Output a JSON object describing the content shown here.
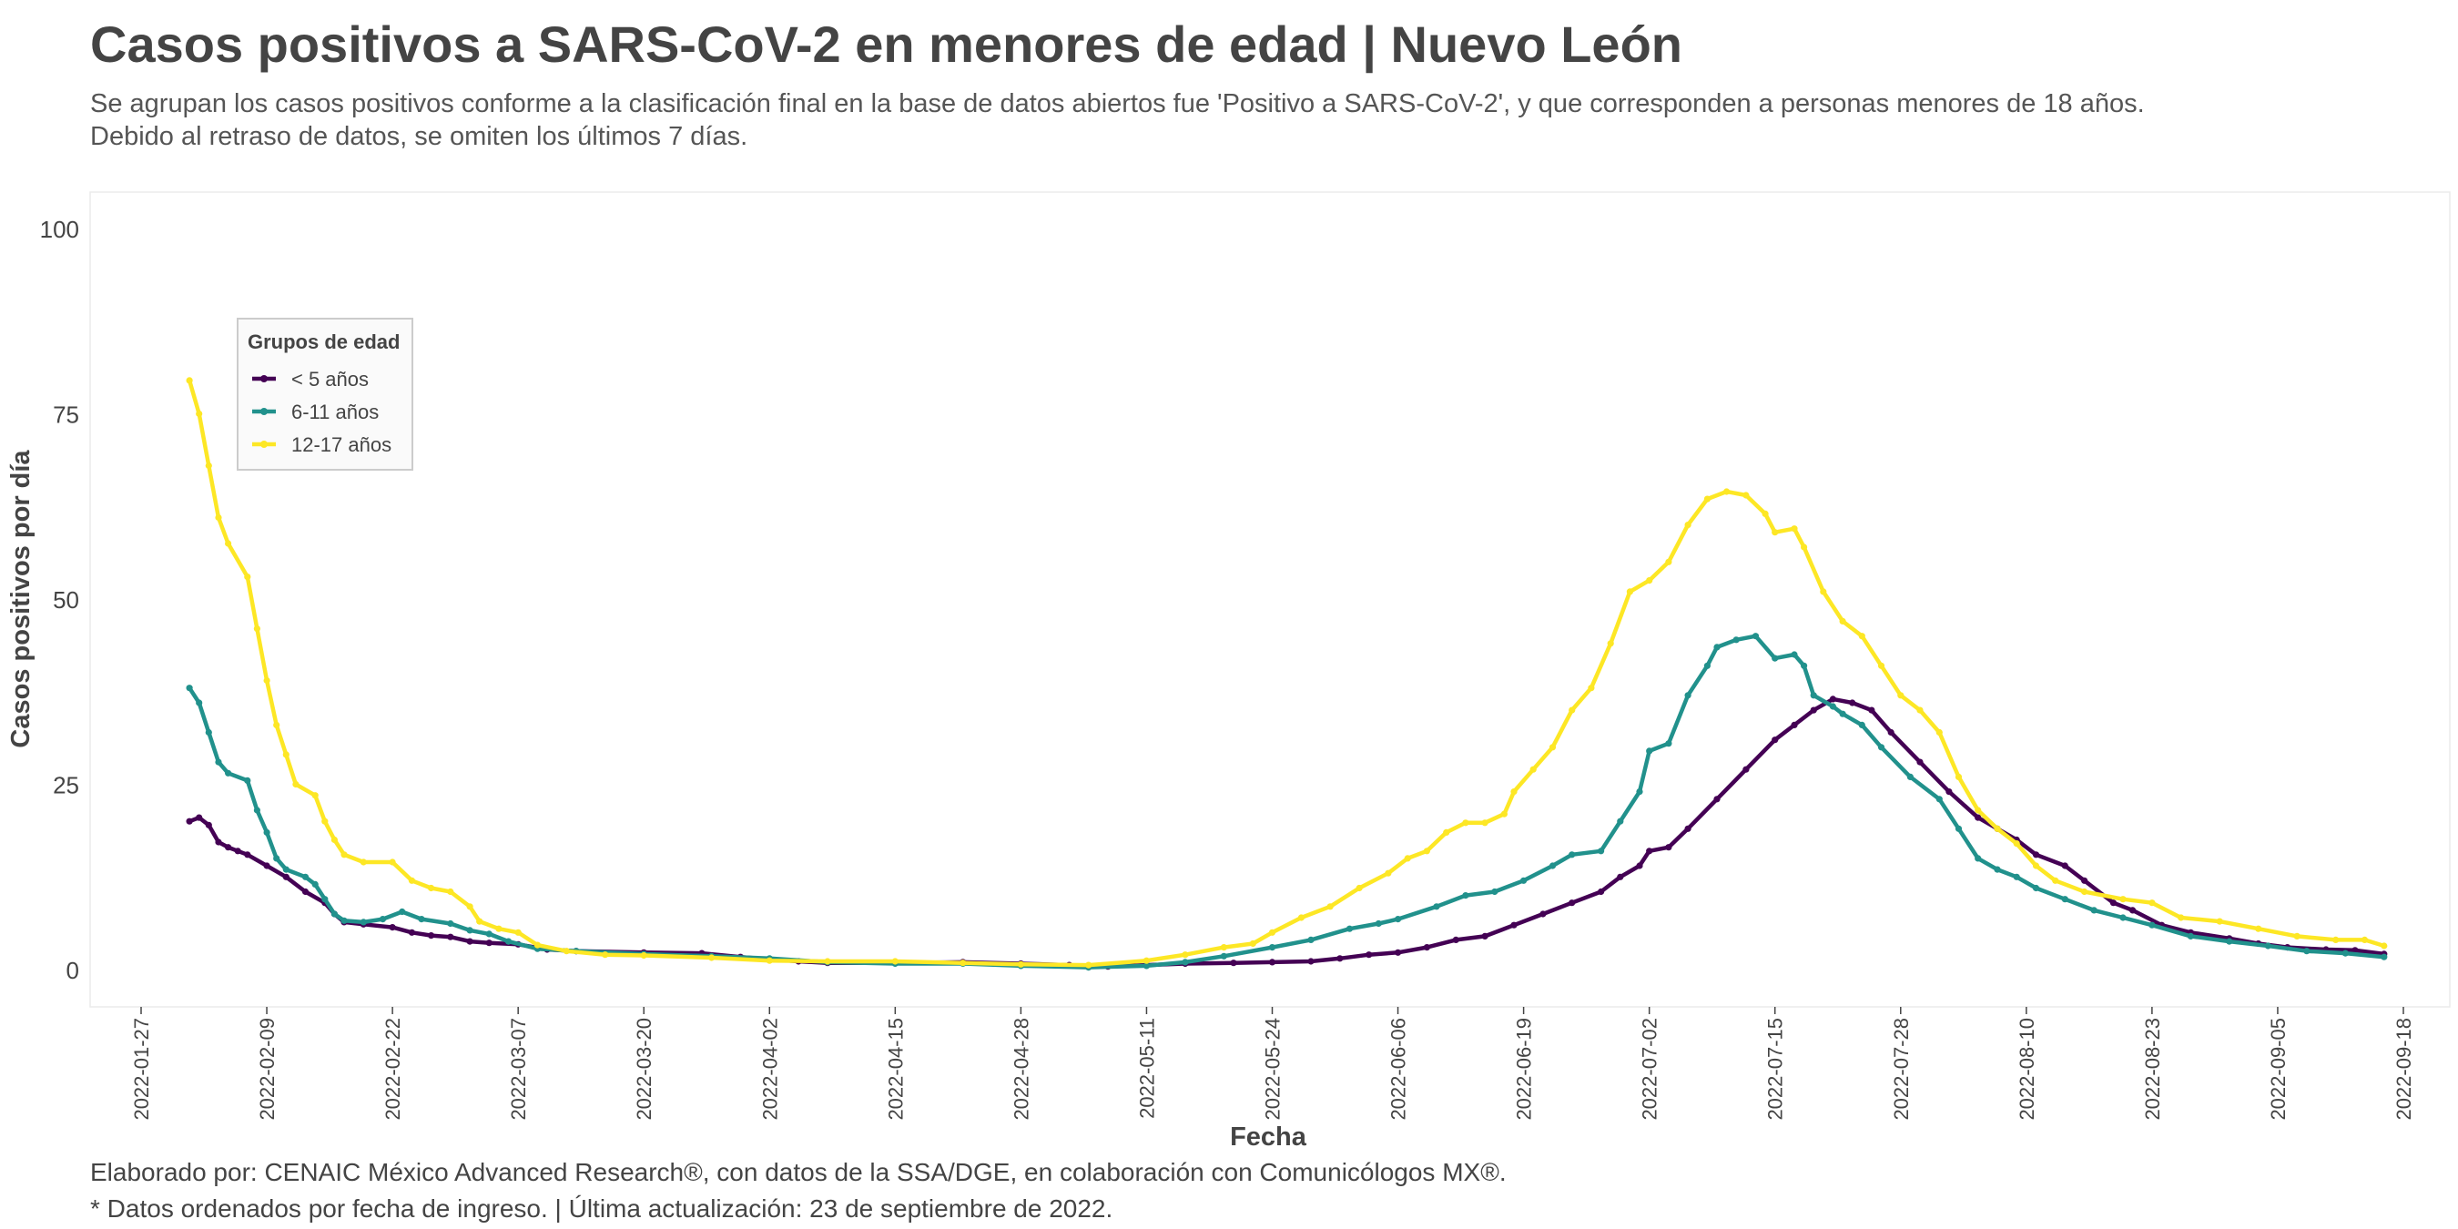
{
  "title": "Casos positivos a SARS-CoV-2 en menores de edad | Nuevo León",
  "subtitle": [
    "Se agrupan los casos positivos conforme a la clasificación final en la base de datos abiertos fue 'Positivo a SARS-CoV-2', y que corresponden a personas menores de 18 años.",
    "Debido al retraso de datos, se omiten los últimos 7 días."
  ],
  "caption": [
    "Elaborado por: CENAIC México Advanced Research®, con datos de la SSA/DGE, en colaboración con Comunicólogos MX®.",
    "* Datos ordenados por fecha de ingreso. | Última actualización: 23 de septiembre de 2022."
  ],
  "chart_data": {
    "type": "line",
    "xlabel": "Fecha",
    "ylabel": "Casos positivos por día",
    "ylim": [
      -5,
      100
    ],
    "yticks": [
      0,
      25,
      50,
      75,
      100
    ],
    "xlim": [
      "2022-01-27",
      "2022-09-18"
    ],
    "xticks": [
      "2022-01-27",
      "2022-02-09",
      "2022-02-22",
      "2022-03-07",
      "2022-03-20",
      "2022-04-02",
      "2022-04-15",
      "2022-04-28",
      "2022-05-11",
      "2022-05-24",
      "2022-06-06",
      "2022-06-19",
      "2022-07-02",
      "2022-07-15",
      "2022-07-28",
      "2022-08-10",
      "2022-08-23",
      "2022-09-05",
      "2022-09-18"
    ],
    "grid": false,
    "legend": {
      "title": "Grupos de edad",
      "position": "top-left"
    },
    "series": [
      {
        "name": "< 5 años",
        "color": "#440154",
        "points": [
          [
            "2022-02-01",
            20
          ],
          [
            "2022-02-02",
            20.5
          ],
          [
            "2022-02-03",
            19.5
          ],
          [
            "2022-02-04",
            17.2
          ],
          [
            "2022-02-05",
            16.5
          ],
          [
            "2022-02-06",
            16
          ],
          [
            "2022-02-07",
            15.5
          ],
          [
            "2022-02-09",
            14
          ],
          [
            "2022-02-11",
            12.5
          ],
          [
            "2022-02-13",
            10.5
          ],
          [
            "2022-02-15",
            9
          ],
          [
            "2022-02-16",
            7.5
          ],
          [
            "2022-02-17",
            6.4
          ],
          [
            "2022-02-19",
            6.1
          ],
          [
            "2022-02-22",
            5.7
          ],
          [
            "2022-02-24",
            5
          ],
          [
            "2022-02-26",
            4.6
          ],
          [
            "2022-02-28",
            4.4
          ],
          [
            "2022-03-02",
            3.8
          ],
          [
            "2022-03-04",
            3.6
          ],
          [
            "2022-03-07",
            3.4
          ],
          [
            "2022-03-10",
            2.7
          ],
          [
            "2022-03-13",
            2.5
          ],
          [
            "2022-03-20",
            2.3
          ],
          [
            "2022-03-26",
            2.2
          ],
          [
            "2022-03-30",
            1.7
          ],
          [
            "2022-04-02",
            1.4
          ],
          [
            "2022-04-05",
            1.1
          ],
          [
            "2022-04-08",
            0.9
          ],
          [
            "2022-04-15",
            0.9
          ],
          [
            "2022-04-22",
            1
          ],
          [
            "2022-04-28",
            0.8
          ],
          [
            "2022-05-03",
            0.6
          ],
          [
            "2022-05-07",
            0.4
          ],
          [
            "2022-05-11",
            0.6
          ],
          [
            "2022-05-15",
            0.8
          ],
          [
            "2022-05-20",
            0.9
          ],
          [
            "2022-05-24",
            1
          ],
          [
            "2022-05-28",
            1.1
          ],
          [
            "2022-05-31",
            1.5
          ],
          [
            "2022-06-03",
            2
          ],
          [
            "2022-06-06",
            2.3
          ],
          [
            "2022-06-09",
            3
          ],
          [
            "2022-06-12",
            4
          ],
          [
            "2022-06-15",
            4.5
          ],
          [
            "2022-06-18",
            6
          ],
          [
            "2022-06-21",
            7.5
          ],
          [
            "2022-06-24",
            9
          ],
          [
            "2022-06-27",
            10.5
          ],
          [
            "2022-06-29",
            12.5
          ],
          [
            "2022-07-01",
            14
          ],
          [
            "2022-07-02",
            16
          ],
          [
            "2022-07-04",
            16.5
          ],
          [
            "2022-07-06",
            19
          ],
          [
            "2022-07-09",
            23
          ],
          [
            "2022-07-12",
            27
          ],
          [
            "2022-07-15",
            31
          ],
          [
            "2022-07-17",
            33
          ],
          [
            "2022-07-19",
            35
          ],
          [
            "2022-07-21",
            36.5
          ],
          [
            "2022-07-23",
            36
          ],
          [
            "2022-07-25",
            35
          ],
          [
            "2022-07-27",
            32
          ],
          [
            "2022-07-30",
            28
          ],
          [
            "2022-08-02",
            24
          ],
          [
            "2022-08-05",
            20.5
          ],
          [
            "2022-08-07",
            19
          ],
          [
            "2022-08-09",
            17.5
          ],
          [
            "2022-08-11",
            15.5
          ],
          [
            "2022-08-14",
            14
          ],
          [
            "2022-08-16",
            12
          ],
          [
            "2022-08-19",
            9
          ],
          [
            "2022-08-21",
            8
          ],
          [
            "2022-08-24",
            6
          ],
          [
            "2022-08-27",
            5
          ],
          [
            "2022-08-31",
            4.2
          ],
          [
            "2022-09-03",
            3.5
          ],
          [
            "2022-09-06",
            3
          ],
          [
            "2022-09-10",
            2.7
          ],
          [
            "2022-09-13",
            2.6
          ],
          [
            "2022-09-16",
            2.1
          ]
        ]
      },
      {
        "name": "6-11 años",
        "color": "#21918c",
        "points": [
          [
            "2022-02-01",
            38
          ],
          [
            "2022-02-02",
            36
          ],
          [
            "2022-02-03",
            32
          ],
          [
            "2022-02-04",
            28
          ],
          [
            "2022-02-05",
            26.5
          ],
          [
            "2022-02-07",
            25.5
          ],
          [
            "2022-02-08",
            21.5
          ],
          [
            "2022-02-09",
            18.5
          ],
          [
            "2022-02-10",
            15
          ],
          [
            "2022-02-11",
            13.5
          ],
          [
            "2022-02-13",
            12.5
          ],
          [
            "2022-02-14",
            11.5
          ],
          [
            "2022-02-15",
            9.5
          ],
          [
            "2022-02-16",
            7.5
          ],
          [
            "2022-02-17",
            6.6
          ],
          [
            "2022-02-19",
            6.4
          ],
          [
            "2022-02-21",
            6.8
          ],
          [
            "2022-02-23",
            7.8
          ],
          [
            "2022-02-25",
            6.8
          ],
          [
            "2022-02-28",
            6.2
          ],
          [
            "2022-03-02",
            5.3
          ],
          [
            "2022-03-04",
            4.8
          ],
          [
            "2022-03-06",
            3.8
          ],
          [
            "2022-03-09",
            2.8
          ],
          [
            "2022-03-13",
            2.5
          ],
          [
            "2022-03-20",
            2.1
          ],
          [
            "2022-03-27",
            1.8
          ],
          [
            "2022-04-02",
            1.5
          ],
          [
            "2022-04-08",
            1
          ],
          [
            "2022-04-15",
            0.8
          ],
          [
            "2022-04-22",
            0.8
          ],
          [
            "2022-04-28",
            0.5
          ],
          [
            "2022-05-05",
            0.3
          ],
          [
            "2022-05-11",
            0.5
          ],
          [
            "2022-05-15",
            1
          ],
          [
            "2022-05-19",
            1.8
          ],
          [
            "2022-05-24",
            3
          ],
          [
            "2022-05-28",
            4
          ],
          [
            "2022-06-01",
            5.5
          ],
          [
            "2022-06-04",
            6.2
          ],
          [
            "2022-06-06",
            6.8
          ],
          [
            "2022-06-10",
            8.5
          ],
          [
            "2022-06-13",
            10
          ],
          [
            "2022-06-16",
            10.5
          ],
          [
            "2022-06-19",
            12
          ],
          [
            "2022-06-22",
            14
          ],
          [
            "2022-06-24",
            15.5
          ],
          [
            "2022-06-27",
            16
          ],
          [
            "2022-06-29",
            20
          ],
          [
            "2022-07-01",
            24
          ],
          [
            "2022-07-02",
            29.5
          ],
          [
            "2022-07-04",
            30.5
          ],
          [
            "2022-07-06",
            37
          ],
          [
            "2022-07-08",
            41
          ],
          [
            "2022-07-09",
            43.5
          ],
          [
            "2022-07-11",
            44.5
          ],
          [
            "2022-07-13",
            45
          ],
          [
            "2022-07-15",
            42
          ],
          [
            "2022-07-17",
            42.5
          ],
          [
            "2022-07-18",
            41
          ],
          [
            "2022-07-19",
            37
          ],
          [
            "2022-07-21",
            35.5
          ],
          [
            "2022-07-22",
            34.5
          ],
          [
            "2022-07-24",
            33
          ],
          [
            "2022-07-26",
            30
          ],
          [
            "2022-07-29",
            26
          ],
          [
            "2022-08-01",
            23
          ],
          [
            "2022-08-03",
            19
          ],
          [
            "2022-08-05",
            15
          ],
          [
            "2022-08-07",
            13.5
          ],
          [
            "2022-08-09",
            12.5
          ],
          [
            "2022-08-11",
            11
          ],
          [
            "2022-08-14",
            9.5
          ],
          [
            "2022-08-17",
            8
          ],
          [
            "2022-08-20",
            7
          ],
          [
            "2022-08-23",
            6
          ],
          [
            "2022-08-27",
            4.5
          ],
          [
            "2022-08-31",
            3.8
          ],
          [
            "2022-09-04",
            3.2
          ],
          [
            "2022-09-08",
            2.5
          ],
          [
            "2022-09-12",
            2.2
          ],
          [
            "2022-09-16",
            1.7
          ]
        ]
      },
      {
        "name": "12-17 años",
        "color": "#fde725",
        "points": [
          [
            "2022-02-01",
            79.5
          ],
          [
            "2022-02-02",
            75
          ],
          [
            "2022-02-03",
            68
          ],
          [
            "2022-02-04",
            61
          ],
          [
            "2022-02-05",
            57.5
          ],
          [
            "2022-02-07",
            53
          ],
          [
            "2022-02-08",
            46
          ],
          [
            "2022-02-09",
            39
          ],
          [
            "2022-02-10",
            33
          ],
          [
            "2022-02-11",
            29
          ],
          [
            "2022-02-12",
            25
          ],
          [
            "2022-02-14",
            23.5
          ],
          [
            "2022-02-15",
            20
          ],
          [
            "2022-02-16",
            17.5
          ],
          [
            "2022-02-17",
            15.5
          ],
          [
            "2022-02-19",
            14.5
          ],
          [
            "2022-02-22",
            14.5
          ],
          [
            "2022-02-24",
            12
          ],
          [
            "2022-02-26",
            11
          ],
          [
            "2022-02-28",
            10.5
          ],
          [
            "2022-03-02",
            8.5
          ],
          [
            "2022-03-03",
            6.5
          ],
          [
            "2022-03-05",
            5.5
          ],
          [
            "2022-03-07",
            5
          ],
          [
            "2022-03-09",
            3.3
          ],
          [
            "2022-03-12",
            2.5
          ],
          [
            "2022-03-16",
            2
          ],
          [
            "2022-03-20",
            1.9
          ],
          [
            "2022-03-27",
            1.6
          ],
          [
            "2022-04-02",
            1.2
          ],
          [
            "2022-04-08",
            1.1
          ],
          [
            "2022-04-15",
            1.1
          ],
          [
            "2022-04-22",
            0.9
          ],
          [
            "2022-04-28",
            0.7
          ],
          [
            "2022-05-05",
            0.6
          ],
          [
            "2022-05-11",
            1.2
          ],
          [
            "2022-05-15",
            2
          ],
          [
            "2022-05-19",
            3
          ],
          [
            "2022-05-22",
            3.5
          ],
          [
            "2022-05-24",
            5
          ],
          [
            "2022-05-27",
            7
          ],
          [
            "2022-05-30",
            8.5
          ],
          [
            "2022-06-02",
            11
          ],
          [
            "2022-06-05",
            13
          ],
          [
            "2022-06-07",
            15
          ],
          [
            "2022-06-09",
            16
          ],
          [
            "2022-06-11",
            18.5
          ],
          [
            "2022-06-13",
            19.8
          ],
          [
            "2022-06-15",
            19.8
          ],
          [
            "2022-06-17",
            21
          ],
          [
            "2022-06-18",
            24
          ],
          [
            "2022-06-20",
            27
          ],
          [
            "2022-06-22",
            30
          ],
          [
            "2022-06-24",
            35
          ],
          [
            "2022-06-26",
            38
          ],
          [
            "2022-06-28",
            44
          ],
          [
            "2022-06-30",
            51
          ],
          [
            "2022-07-02",
            52.5
          ],
          [
            "2022-07-04",
            55
          ],
          [
            "2022-07-06",
            60
          ],
          [
            "2022-07-08",
            63.5
          ],
          [
            "2022-07-10",
            64.5
          ],
          [
            "2022-07-12",
            64
          ],
          [
            "2022-07-14",
            61.5
          ],
          [
            "2022-07-15",
            59
          ],
          [
            "2022-07-17",
            59.5
          ],
          [
            "2022-07-18",
            57
          ],
          [
            "2022-07-20",
            51
          ],
          [
            "2022-07-22",
            47
          ],
          [
            "2022-07-24",
            45
          ],
          [
            "2022-07-26",
            41
          ],
          [
            "2022-07-28",
            37
          ],
          [
            "2022-07-30",
            35
          ],
          [
            "2022-08-01",
            32
          ],
          [
            "2022-08-03",
            26
          ],
          [
            "2022-08-05",
            21.5
          ],
          [
            "2022-08-07",
            19
          ],
          [
            "2022-08-09",
            17
          ],
          [
            "2022-08-11",
            14
          ],
          [
            "2022-08-13",
            12
          ],
          [
            "2022-08-16",
            10.5
          ],
          [
            "2022-08-20",
            9.5
          ],
          [
            "2022-08-23",
            9
          ],
          [
            "2022-08-26",
            7
          ],
          [
            "2022-08-30",
            6.5
          ],
          [
            "2022-09-03",
            5.5
          ],
          [
            "2022-09-07",
            4.5
          ],
          [
            "2022-09-11",
            4
          ],
          [
            "2022-09-14",
            4
          ],
          [
            "2022-09-16",
            3.2
          ]
        ]
      }
    ]
  }
}
